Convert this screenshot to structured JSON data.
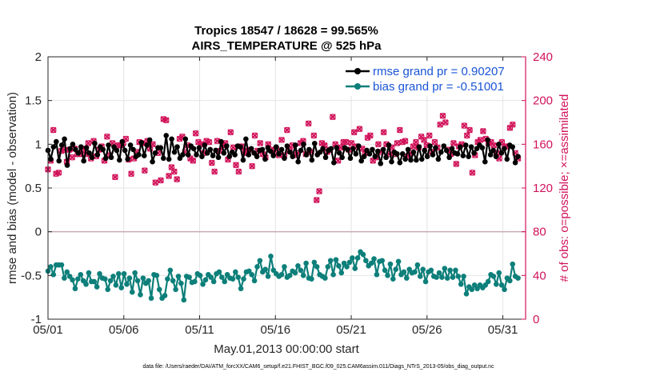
{
  "chart_data": {
    "type": "line",
    "title_line1": "Tropics 18547 / 18628 = 99.565%",
    "title_line2": "AIRS_TEMPERATURE @ 525 hPa",
    "xlabel": "May.01,2013 00:00:00 start",
    "ylabel_left": "rmse and bias (model - observation)",
    "ylabel_right": "# of obs: o=possible; ×=assimilated",
    "footnote": "data file: /Users/raeder/DAI/ATM_forcXX/CAM6_setup/f.e21.FHIST_BGC.f09_025.CAM6assim.011/Diags_NTrS_2013-05/obs_diag_output.nc",
    "x_ticks": [
      {
        "label": "05/01",
        "day": 0
      },
      {
        "label": "05/06",
        "day": 5
      },
      {
        "label": "05/11",
        "day": 10
      },
      {
        "label": "05/16",
        "day": 15
      },
      {
        "label": "05/21",
        "day": 20
      },
      {
        "label": "05/26",
        "day": 25
      },
      {
        "label": "05/31",
        "day": 30
      }
    ],
    "xlim": [
      0,
      31.5
    ],
    "y_left_ticks": [
      "-1",
      "-0.5",
      "0",
      "0.5",
      "1",
      "1.5",
      "2"
    ],
    "y_left_lim": [
      -1,
      2
    ],
    "y_right_ticks": [
      "0",
      "40",
      "80",
      "120",
      "160",
      "200",
      "240"
    ],
    "y_right_lim": [
      0,
      240
    ],
    "colors": {
      "rmse": "#000000",
      "bias": "#0d7f7a",
      "obs": "#d1135a",
      "legend_text": "#1a55d6",
      "zero_line": "#c9aab4",
      "grid": "#e4e4e4"
    },
    "series": [
      {
        "name": "rmse grand pr = 0.90207",
        "axis": "left",
        "values": [
          0.93,
          0.83,
          0.97,
          1.03,
          0.81,
          0.99,
          1.06,
          0.76,
          0.95,
          1.0,
          0.94,
          0.9,
          0.97,
          0.81,
          0.96,
          0.9,
          0.85,
          1.01,
          0.88,
          0.97,
          0.94,
          0.84,
          0.99,
          0.85,
          0.97,
          0.93,
          0.82,
          1.03,
          0.93,
          0.83,
          0.99,
          0.94,
          0.86,
          0.88,
          1.02,
          0.87,
          0.99,
          1.05,
          0.8,
          0.9,
          0.96,
          0.96,
          0.84,
          1.1,
          0.83,
          1.06,
          0.91,
          0.97,
          0.84,
          0.88,
          1.06,
          0.88,
          0.98,
          0.95,
          0.88,
          0.96,
          0.86,
          0.99,
          0.9,
          0.94,
          0.87,
          0.93,
          0.85,
          1.03,
          0.9,
          0.98,
          0.86,
          0.91,
          0.88,
          0.98,
          0.97,
          0.82,
          1.06,
          0.88,
          0.95,
          0.9,
          0.86,
          0.93,
          0.94,
          0.83,
          0.96,
          0.92,
          0.87,
          0.97,
          0.89,
          0.94,
          0.84,
          0.98,
          0.91,
          0.86,
          0.99,
          0.8,
          0.93,
          1.0,
          0.88,
          0.94,
          0.82,
          1.01,
          0.88,
          0.91,
          0.95,
          0.85,
          0.93,
          0.95,
          0.79,
          0.96,
          0.9,
          0.85,
          0.96,
          0.94,
          0.84,
          0.95,
          0.89,
          0.98,
          0.81,
          0.86,
          0.93,
          0.89,
          0.94,
          0.86,
          0.92,
          0.78,
          0.94,
          0.85,
          0.99,
          0.8,
          0.91,
          0.89,
          0.79,
          0.89,
          0.83,
          0.94,
          0.82,
          0.91,
          0.82,
          0.97,
          0.83,
          0.93,
          0.86,
          0.98,
          0.88,
          0.96,
          0.83,
          0.91,
          0.98,
          0.93,
          0.85,
          0.95,
          0.9,
          0.89,
          0.97,
          0.87,
          0.99,
          0.86,
          0.97,
          0.9,
          0.95,
          0.99,
          0.96,
          0.8,
          1.05,
          0.88,
          0.93,
          0.86,
          1.0,
          0.9,
          0.95,
          0.83,
          0.99,
          0.97,
          0.79,
          0.86
        ]
      },
      {
        "name": "bias grand pr = -0.51001",
        "axis": "left",
        "values": [
          -0.45,
          -0.4,
          -0.49,
          -0.38,
          -0.38,
          -0.38,
          -0.53,
          -0.46,
          -0.51,
          -0.55,
          -0.65,
          -0.54,
          -0.49,
          -0.56,
          -0.6,
          -0.47,
          -0.57,
          -0.57,
          -0.63,
          -0.48,
          -0.53,
          -0.54,
          -0.66,
          -0.56,
          -0.51,
          -0.61,
          -0.48,
          -0.64,
          -0.48,
          -0.6,
          -0.53,
          -0.69,
          -0.47,
          -0.56,
          -0.72,
          -0.53,
          -0.59,
          -0.56,
          -0.76,
          -0.49,
          -0.5,
          -0.66,
          -0.76,
          -0.73,
          -0.54,
          -0.44,
          -0.56,
          -0.66,
          -0.51,
          -0.59,
          -0.78,
          -0.51,
          -0.52,
          -0.58,
          -0.57,
          -0.48,
          -0.5,
          -0.6,
          -0.55,
          -0.49,
          -0.52,
          -0.57,
          -0.48,
          -0.46,
          -0.52,
          -0.57,
          -0.49,
          -0.53,
          -0.54,
          -0.46,
          -0.52,
          -0.65,
          -0.54,
          -0.46,
          -0.45,
          -0.49,
          -0.56,
          -0.4,
          -0.33,
          -0.46,
          -0.43,
          -0.51,
          -0.28,
          -0.44,
          -0.48,
          -0.51,
          -0.49,
          -0.4,
          -0.52,
          -0.5,
          -0.45,
          -0.47,
          -0.39,
          -0.44,
          -0.5,
          -0.36,
          -0.53,
          -0.54,
          -0.35,
          -0.4,
          -0.49,
          -0.51,
          -0.53,
          -0.4,
          -0.33,
          -0.49,
          -0.32,
          -0.39,
          -0.47,
          -0.36,
          -0.4,
          -0.35,
          -0.3,
          -0.42,
          -0.3,
          -0.23,
          -0.26,
          -0.33,
          -0.39,
          -0.36,
          -0.31,
          -0.49,
          -0.34,
          -0.33,
          -0.44,
          -0.5,
          -0.37,
          -0.54,
          -0.43,
          -0.34,
          -0.49,
          -0.46,
          -0.53,
          -0.43,
          -0.47,
          -0.46,
          -0.38,
          -0.51,
          -0.43,
          -0.57,
          -0.46,
          -0.44,
          -0.51,
          -0.52,
          -0.47,
          -0.52,
          -0.42,
          -0.53,
          -0.44,
          -0.52,
          -0.44,
          -0.51,
          -0.6,
          -0.51,
          -0.71,
          -0.63,
          -0.66,
          -0.61,
          -0.65,
          -0.61,
          -0.64,
          -0.61,
          -0.57,
          -0.49,
          -0.51,
          -0.6,
          -0.47,
          -0.61,
          -0.66,
          -0.53,
          -0.56,
          -0.37,
          -0.51,
          -0.53
        ]
      },
      {
        "name": "# of obs: possible",
        "axis": "right",
        "marker": "o",
        "values": [
          137,
          145,
          173,
          133,
          134,
          154,
          155,
          144,
          155,
          148,
          156,
          151,
          151,
          156,
          151,
          161,
          147,
          163,
          149,
          155,
          158,
          145,
          167,
          150,
          161,
          130,
          159,
          159,
          161,
          165,
          146,
          133,
          147,
          153,
          162,
          161,
          136,
          163,
          156,
          160,
          125,
          152,
          127,
          183,
          182,
          131,
          139,
          135,
          128,
          165,
          167,
          153,
          159,
          147,
          145,
          170,
          162,
          160,
          152,
          163,
          162,
          143,
          135,
          163,
          154,
          159,
          161,
          146,
          171,
          157,
          141,
          135,
          158,
          154,
          152,
          155,
          140,
          168,
          154,
          161,
          151,
          148,
          160,
          155,
          152,
          156,
          150,
          164,
          150,
          173,
          154,
          159,
          150,
          152,
          161,
          163,
          151,
          179,
          153,
          168,
          109,
          117,
          161,
          159,
          153,
          155,
          185,
          160,
          145,
          157,
          162,
          162,
          155,
          161,
          171,
          158,
          174,
          156,
          152,
          166,
          168,
          145,
          148,
          160,
          153,
          171,
          160,
          151,
          157,
          151,
          161,
          173,
          162,
          163,
          149,
          152,
          158,
          162,
          157,
          167,
          164,
          159,
          168,
          153,
          162,
          157,
          178,
          186,
          180,
          155,
          151,
          161,
          142,
          158,
          160,
          177,
          168,
          173,
          134,
          150,
          162,
          164,
          172,
          165,
          161,
          162,
          159,
          152,
          147,
          162,
          158,
          158,
          175,
          178,
          152,
          147
        ]
      },
      {
        "name": "# of obs: assimilated",
        "axis": "right",
        "marker": "x",
        "values": [
          137,
          145,
          173,
          133,
          134,
          154,
          155,
          144,
          155,
          148,
          156,
          151,
          151,
          156,
          151,
          161,
          147,
          163,
          149,
          155,
          158,
          145,
          167,
          150,
          161,
          130,
          159,
          159,
          161,
          165,
          146,
          133,
          147,
          153,
          162,
          161,
          136,
          163,
          156,
          160,
          125,
          152,
          127,
          183,
          182,
          131,
          139,
          135,
          128,
          165,
          167,
          153,
          159,
          147,
          145,
          170,
          162,
          160,
          152,
          163,
          162,
          143,
          135,
          163,
          154,
          159,
          161,
          146,
          171,
          157,
          141,
          135,
          158,
          154,
          152,
          155,
          140,
          168,
          154,
          161,
          151,
          148,
          160,
          155,
          152,
          156,
          150,
          164,
          150,
          173,
          154,
          159,
          150,
          152,
          161,
          163,
          151,
          179,
          153,
          168,
          109,
          117,
          161,
          159,
          153,
          155,
          185,
          160,
          145,
          157,
          162,
          162,
          155,
          161,
          171,
          158,
          174,
          156,
          152,
          166,
          168,
          145,
          148,
          160,
          153,
          171,
          160,
          151,
          157,
          151,
          161,
          173,
          162,
          163,
          149,
          152,
          158,
          162,
          157,
          167,
          164,
          159,
          168,
          153,
          162,
          157,
          178,
          186,
          180,
          155,
          151,
          161,
          142,
          158,
          160,
          177,
          168,
          173,
          134,
          150,
          162,
          164,
          172,
          165,
          161,
          162,
          159,
          152,
          147,
          162,
          158,
          158,
          175,
          178,
          152,
          147
        ]
      }
    ],
    "legend": {
      "placement": "top-right",
      "entries": [
        "rmse grand pr = 0.90207",
        "bias grand pr = -0.51001"
      ]
    }
  }
}
